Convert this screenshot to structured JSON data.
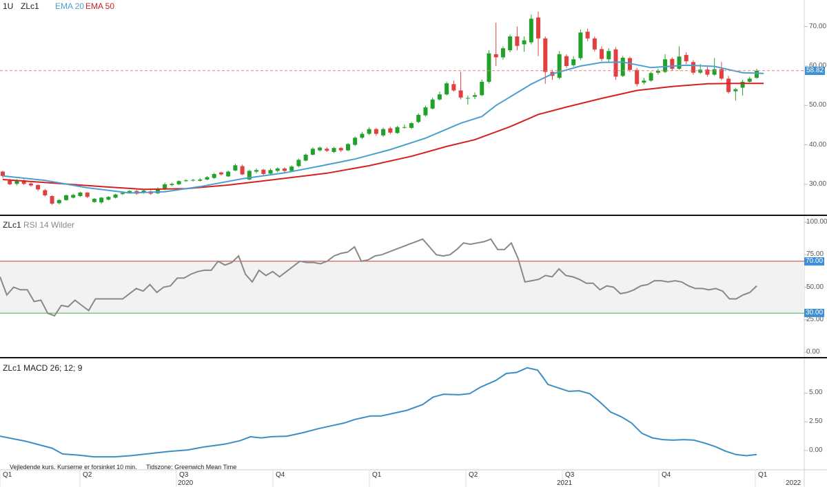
{
  "header": {
    "interval": "1U",
    "symbol": "ZLc1",
    "ema20_label": "EMA 20",
    "ema50_label": "EMA 50"
  },
  "rsi_header": {
    "symbol": "ZLc1",
    "label": "RSI 14 Wilder"
  },
  "macd_header": {
    "symbol": "ZLc1",
    "label": "MACD 26; 12; 9"
  },
  "footer": {
    "disclaimer": "Vejledende kurs. Kurserne er forsinket 10 min.",
    "timezone": "Tidszone: Greenwich Mean Time"
  },
  "colors": {
    "up": "#22a12a",
    "down": "#e04040",
    "ema20": "#4a9fd0",
    "ema50": "#d42020",
    "rsi": "#888888",
    "macd": "#3b8ec4",
    "tag": "#3e8fd6"
  },
  "chart_data": [
    {
      "type": "candlestick",
      "panel": "price",
      "y_ticks": [
        "30.00",
        "40.00",
        "50.00",
        "60.00",
        "70.00"
      ],
      "ylim": [
        23,
        75
      ],
      "last_price": "58.82",
      "candles": [
        [
          33.2,
          32.1,
          33.4,
          31.6
        ],
        [
          30.9,
          30.0,
          31.4,
          29.8
        ],
        [
          30.1,
          31.0,
          31.3,
          29.7
        ],
        [
          31.0,
          30.1,
          31.3,
          29.8
        ],
        [
          30.2,
          29.7,
          30.5,
          29.4
        ],
        [
          29.8,
          28.7,
          30.0,
          28.3
        ],
        [
          28.5,
          27.2,
          28.8,
          26.9
        ],
        [
          27.0,
          25.1,
          27.2,
          24.8
        ],
        [
          25.2,
          26.0,
          26.2,
          24.9
        ],
        [
          26.0,
          27.2,
          27.4,
          25.8
        ],
        [
          26.6,
          27.3,
          27.6,
          26.4
        ],
        [
          27.0,
          27.9,
          28.1,
          26.8
        ],
        [
          27.9,
          26.8,
          28.0,
          26.5
        ],
        [
          25.5,
          26.3,
          26.5,
          25.3
        ],
        [
          25.4,
          26.6,
          26.8,
          25.0
        ],
        [
          26.1,
          26.8,
          27.0,
          25.9
        ],
        [
          26.6,
          27.4,
          27.6,
          26.4
        ],
        [
          27.5,
          27.8,
          28.0,
          27.3
        ],
        [
          27.8,
          28.3,
          28.5,
          27.6
        ],
        [
          28.3,
          27.6,
          28.6,
          27.3
        ],
        [
          27.9,
          28.4,
          28.6,
          27.6
        ],
        [
          28.2,
          27.6,
          28.5,
          27.3
        ],
        [
          27.7,
          28.8,
          29.2,
          27.5
        ],
        [
          28.7,
          30.0,
          30.4,
          28.5
        ],
        [
          29.8,
          30.1,
          30.4,
          29.5
        ],
        [
          30.0,
          30.8,
          31.0,
          29.8
        ],
        [
          30.8,
          31.0,
          31.3,
          30.6
        ],
        [
          31.0,
          31.1,
          31.4,
          30.7
        ],
        [
          30.9,
          31.2,
          31.6,
          30.7
        ],
        [
          31.2,
          31.8,
          32.1,
          31.0
        ],
        [
          31.6,
          32.6,
          32.9,
          31.4
        ],
        [
          33.0,
          32.5,
          33.2,
          32.2
        ],
        [
          32.0,
          33.2,
          33.5,
          31.8
        ],
        [
          33.5,
          34.8,
          35.2,
          33.3
        ],
        [
          34.6,
          32.5,
          35.0,
          32.3
        ],
        [
          31.2,
          33.4,
          33.7,
          31.0
        ],
        [
          33.2,
          33.6,
          34.0,
          32.8
        ],
        [
          33.7,
          32.6,
          33.9,
          32.2
        ],
        [
          32.7,
          33.6,
          34.0,
          32.4
        ],
        [
          33.4,
          34.0,
          34.3,
          33.0
        ],
        [
          34.0,
          33.4,
          34.3,
          33.0
        ],
        [
          33.4,
          34.5,
          34.8,
          33.2
        ],
        [
          34.6,
          36.2,
          36.5,
          34.3
        ],
        [
          36.0,
          37.5,
          37.8,
          35.8
        ],
        [
          37.5,
          39.0,
          39.4,
          37.3
        ],
        [
          38.6,
          39.3,
          39.6,
          38.3
        ],
        [
          39.0,
          38.5,
          39.4,
          38.2
        ],
        [
          38.2,
          39.2,
          39.5,
          37.9
        ],
        [
          39.2,
          38.6,
          39.5,
          38.2
        ],
        [
          38.6,
          40.2,
          40.5,
          38.4
        ],
        [
          40.0,
          41.8,
          42.1,
          39.7
        ],
        [
          41.8,
          42.8,
          43.3,
          41.5
        ],
        [
          42.8,
          44.0,
          44.5,
          42.5
        ],
        [
          44.0,
          42.8,
          44.3,
          42.3
        ],
        [
          42.4,
          44.0,
          44.4,
          42.0
        ],
        [
          44.2,
          43.1,
          44.6,
          42.7
        ],
        [
          43.0,
          44.5,
          44.8,
          42.8
        ],
        [
          44.4,
          44.5,
          45.1,
          44.1
        ],
        [
          44.3,
          45.5,
          45.8,
          44.0
        ],
        [
          45.8,
          47.6,
          48.0,
          45.5
        ],
        [
          47.5,
          49.5,
          49.9,
          47.2
        ],
        [
          49.2,
          51.5,
          52.0,
          49.0
        ],
        [
          51.5,
          52.8,
          53.5,
          51.2
        ],
        [
          52.8,
          55.6,
          56.0,
          52.5
        ],
        [
          55.4,
          53.8,
          56.3,
          53.5
        ],
        [
          53.8,
          52.0,
          58.5,
          51.5
        ],
        [
          51.8,
          51.9,
          52.5,
          50.2
        ],
        [
          52.2,
          52.6,
          53.3,
          51.6
        ],
        [
          52.6,
          56.0,
          56.6,
          52.4
        ],
        [
          56.0,
          63.2,
          64.0,
          55.6
        ],
        [
          63.0,
          62.2,
          71.0,
          60.0
        ],
        [
          62.2,
          64.5,
          65.0,
          61.6
        ],
        [
          64.0,
          67.5,
          68.0,
          63.5
        ],
        [
          67.5,
          65.1,
          70.0,
          64.0
        ],
        [
          65.5,
          66.5,
          67.5,
          63.6
        ],
        [
          66.0,
          72.0,
          73.0,
          65.5
        ],
        [
          72.3,
          67.0,
          73.8,
          62.5
        ],
        [
          67.0,
          58.5,
          67.5,
          55.5
        ],
        [
          58.5,
          57.5,
          59.0,
          56.5
        ],
        [
          57.0,
          63.0,
          63.8,
          56.6
        ],
        [
          62.5,
          60.0,
          63.0,
          59.5
        ],
        [
          60.2,
          61.7,
          62.5,
          59.8
        ],
        [
          62.0,
          68.5,
          69.3,
          61.5
        ],
        [
          68.7,
          67.0,
          69.5,
          66.3
        ],
        [
          67.0,
          64.2,
          67.5,
          63.7
        ],
        [
          64.3,
          61.8,
          65.0,
          61.2
        ],
        [
          61.7,
          63.8,
          64.5,
          61.0
        ],
        [
          64.2,
          57.3,
          64.8,
          56.5
        ],
        [
          57.5,
          62.1,
          62.6,
          57.2
        ],
        [
          62.0,
          59.0,
          62.4,
          58.5
        ],
        [
          59.0,
          55.4,
          59.5,
          54.8
        ],
        [
          55.8,
          56.3,
          57.0,
          55.3
        ],
        [
          56.3,
          58.2,
          58.6,
          56.0
        ],
        [
          58.3,
          58.8,
          59.3,
          57.8
        ],
        [
          58.5,
          61.7,
          63.0,
          58.2
        ],
        [
          61.8,
          59.3,
          62.2,
          58.8
        ],
        [
          59.3,
          62.4,
          65.0,
          59.0
        ],
        [
          62.8,
          61.2,
          63.5,
          60.5
        ],
        [
          61.0,
          58.3,
          61.5,
          57.8
        ],
        [
          58.3,
          59.1,
          60.5,
          58.0
        ],
        [
          59.1,
          57.8,
          59.8,
          57.3
        ],
        [
          57.8,
          59.2,
          62.0,
          57.5
        ],
        [
          59.2,
          56.8,
          61.0,
          56.4
        ],
        [
          56.8,
          53.4,
          57.5,
          53.0
        ],
        [
          53.6,
          54.1,
          54.5,
          51.2
        ],
        [
          54.5,
          56.0,
          56.5,
          52.5
        ],
        [
          56.0,
          56.8,
          57.3,
          55.8
        ],
        [
          57.0,
          58.8,
          59.3,
          56.8
        ]
      ],
      "ema20": [
        [
          0,
          32.1
        ],
        [
          6,
          31.0
        ],
        [
          12,
          29.1
        ],
        [
          18,
          27.8
        ],
        [
          23,
          28.1
        ],
        [
          28,
          29.4
        ],
        [
          34,
          31.4
        ],
        [
          40,
          32.9
        ],
        [
          45,
          34.6
        ],
        [
          50,
          36.4
        ],
        [
          55,
          38.8
        ],
        [
          60,
          41.7
        ],
        [
          65,
          45.5
        ],
        [
          68,
          47.2
        ],
        [
          70,
          50.0
        ],
        [
          75,
          55.4
        ],
        [
          78,
          58.0
        ],
        [
          82,
          60.0
        ],
        [
          85,
          60.9
        ],
        [
          88,
          61.0
        ],
        [
          92,
          59.6
        ],
        [
          97,
          60.2
        ],
        [
          101,
          59.9
        ],
        [
          105,
          58.3
        ],
        [
          108,
          58.1
        ]
      ],
      "ema50": [
        [
          0,
          31.2
        ],
        [
          8,
          30.2
        ],
        [
          14,
          29.4
        ],
        [
          20,
          28.7
        ],
        [
          26,
          28.9
        ],
        [
          32,
          29.8
        ],
        [
          40,
          31.5
        ],
        [
          46,
          32.8
        ],
        [
          52,
          34.7
        ],
        [
          58,
          37.1
        ],
        [
          63,
          39.6
        ],
        [
          67,
          41.3
        ],
        [
          72,
          44.6
        ],
        [
          76,
          47.7
        ],
        [
          80,
          49.6
        ],
        [
          85,
          51.8
        ],
        [
          90,
          53.8
        ],
        [
          95,
          54.8
        ],
        [
          100,
          55.5
        ],
        [
          104,
          55.6
        ],
        [
          108,
          55.6
        ]
      ]
    },
    {
      "type": "line",
      "panel": "rsi",
      "name": "RSI 14 Wilder",
      "y_ticks": [
        "0.00",
        "25.00",
        "50.00",
        "75.00",
        "100.00"
      ],
      "ylim": [
        0,
        100
      ],
      "levels": [
        {
          "value": 70,
          "label": "70.00",
          "color": "#d43a3a"
        },
        {
          "value": 30,
          "label": "30.00",
          "color": "#3fb05a"
        }
      ],
      "values": [
        58,
        44,
        50,
        48,
        48,
        39,
        40,
        30,
        28,
        36,
        35,
        40,
        36,
        32,
        41,
        41,
        41,
        41,
        41,
        45,
        49,
        47,
        52,
        46,
        50,
        51,
        57,
        57,
        60,
        62,
        63,
        63,
        70,
        67,
        69,
        74,
        60,
        54,
        63,
        59,
        62,
        58,
        62,
        66,
        70,
        69,
        69,
        68,
        70,
        74,
        76,
        77,
        81,
        70,
        71,
        74,
        75,
        77,
        79,
        81,
        83,
        85,
        87,
        81,
        75,
        74,
        75,
        79,
        84,
        83,
        84,
        85,
        87,
        79,
        79,
        84,
        72,
        54,
        55,
        56,
        59,
        58,
        64,
        59,
        58,
        56,
        53,
        53,
        48,
        51,
        50,
        45,
        46,
        48,
        51,
        52,
        55,
        55,
        54,
        55,
        54,
        51,
        49,
        49,
        48,
        49,
        47,
        41,
        41,
        44,
        46,
        51
      ]
    },
    {
      "type": "line",
      "panel": "macd",
      "name": "MACD 26; 12; 9",
      "y_ticks": [
        "0.00",
        "2.50",
        "5.00"
      ],
      "ylim": [
        -1.5,
        7.6
      ],
      "values": [
        [
          0,
          1.25
        ],
        [
          5,
          0.8
        ],
        [
          10,
          0.2
        ],
        [
          12,
          -0.3
        ],
        [
          15,
          -0.4
        ],
        [
          18,
          -0.55
        ],
        [
          22,
          -0.55
        ],
        [
          25,
          -0.45
        ],
        [
          28,
          -0.3
        ],
        [
          32,
          -0.1
        ],
        [
          36,
          0.05
        ],
        [
          39,
          0.3
        ],
        [
          43,
          0.55
        ],
        [
          46,
          0.85
        ],
        [
          48,
          1.2
        ],
        [
          50,
          1.1
        ],
        [
          52,
          1.2
        ],
        [
          55,
          1.25
        ],
        [
          58,
          1.55
        ],
        [
          61,
          1.9
        ],
        [
          64,
          2.2
        ],
        [
          66,
          2.4
        ],
        [
          68,
          2.7
        ],
        [
          71,
          3.0
        ],
        [
          73,
          3.0
        ],
        [
          75,
          3.2
        ],
        [
          78,
          3.5
        ],
        [
          81,
          4.0
        ],
        [
          83,
          4.65
        ],
        [
          85,
          4.9
        ],
        [
          88,
          4.85
        ],
        [
          90,
          4.95
        ],
        [
          92,
          5.5
        ],
        [
          95,
          6.1
        ],
        [
          97,
          6.7
        ],
        [
          99,
          6.8
        ],
        [
          101,
          7.2
        ],
        [
          103,
          7.0
        ],
        [
          104,
          6.4
        ],
        [
          105,
          5.75
        ],
        [
          107,
          5.45
        ],
        [
          109,
          5.15
        ],
        [
          111,
          5.2
        ],
        [
          113,
          4.95
        ],
        [
          115,
          4.2
        ],
        [
          117,
          3.35
        ],
        [
          119,
          2.95
        ],
        [
          121,
          2.4
        ],
        [
          123,
          1.5
        ],
        [
          125,
          1.1
        ],
        [
          127,
          0.95
        ],
        [
          129,
          0.9
        ],
        [
          131,
          0.95
        ],
        [
          133,
          0.9
        ],
        [
          135,
          0.65
        ],
        [
          137,
          0.35
        ],
        [
          139,
          -0.05
        ],
        [
          141,
          -0.35
        ],
        [
          143,
          -0.45
        ],
        [
          145,
          -0.35
        ]
      ]
    }
  ],
  "x_axis": {
    "quarters": [
      "Q1",
      "Q2",
      "Q3",
      "Q4",
      "Q1",
      "Q2",
      "Q3",
      "Q4",
      "Q1"
    ],
    "years": [
      "2020",
      "2021",
      "2022"
    ]
  }
}
